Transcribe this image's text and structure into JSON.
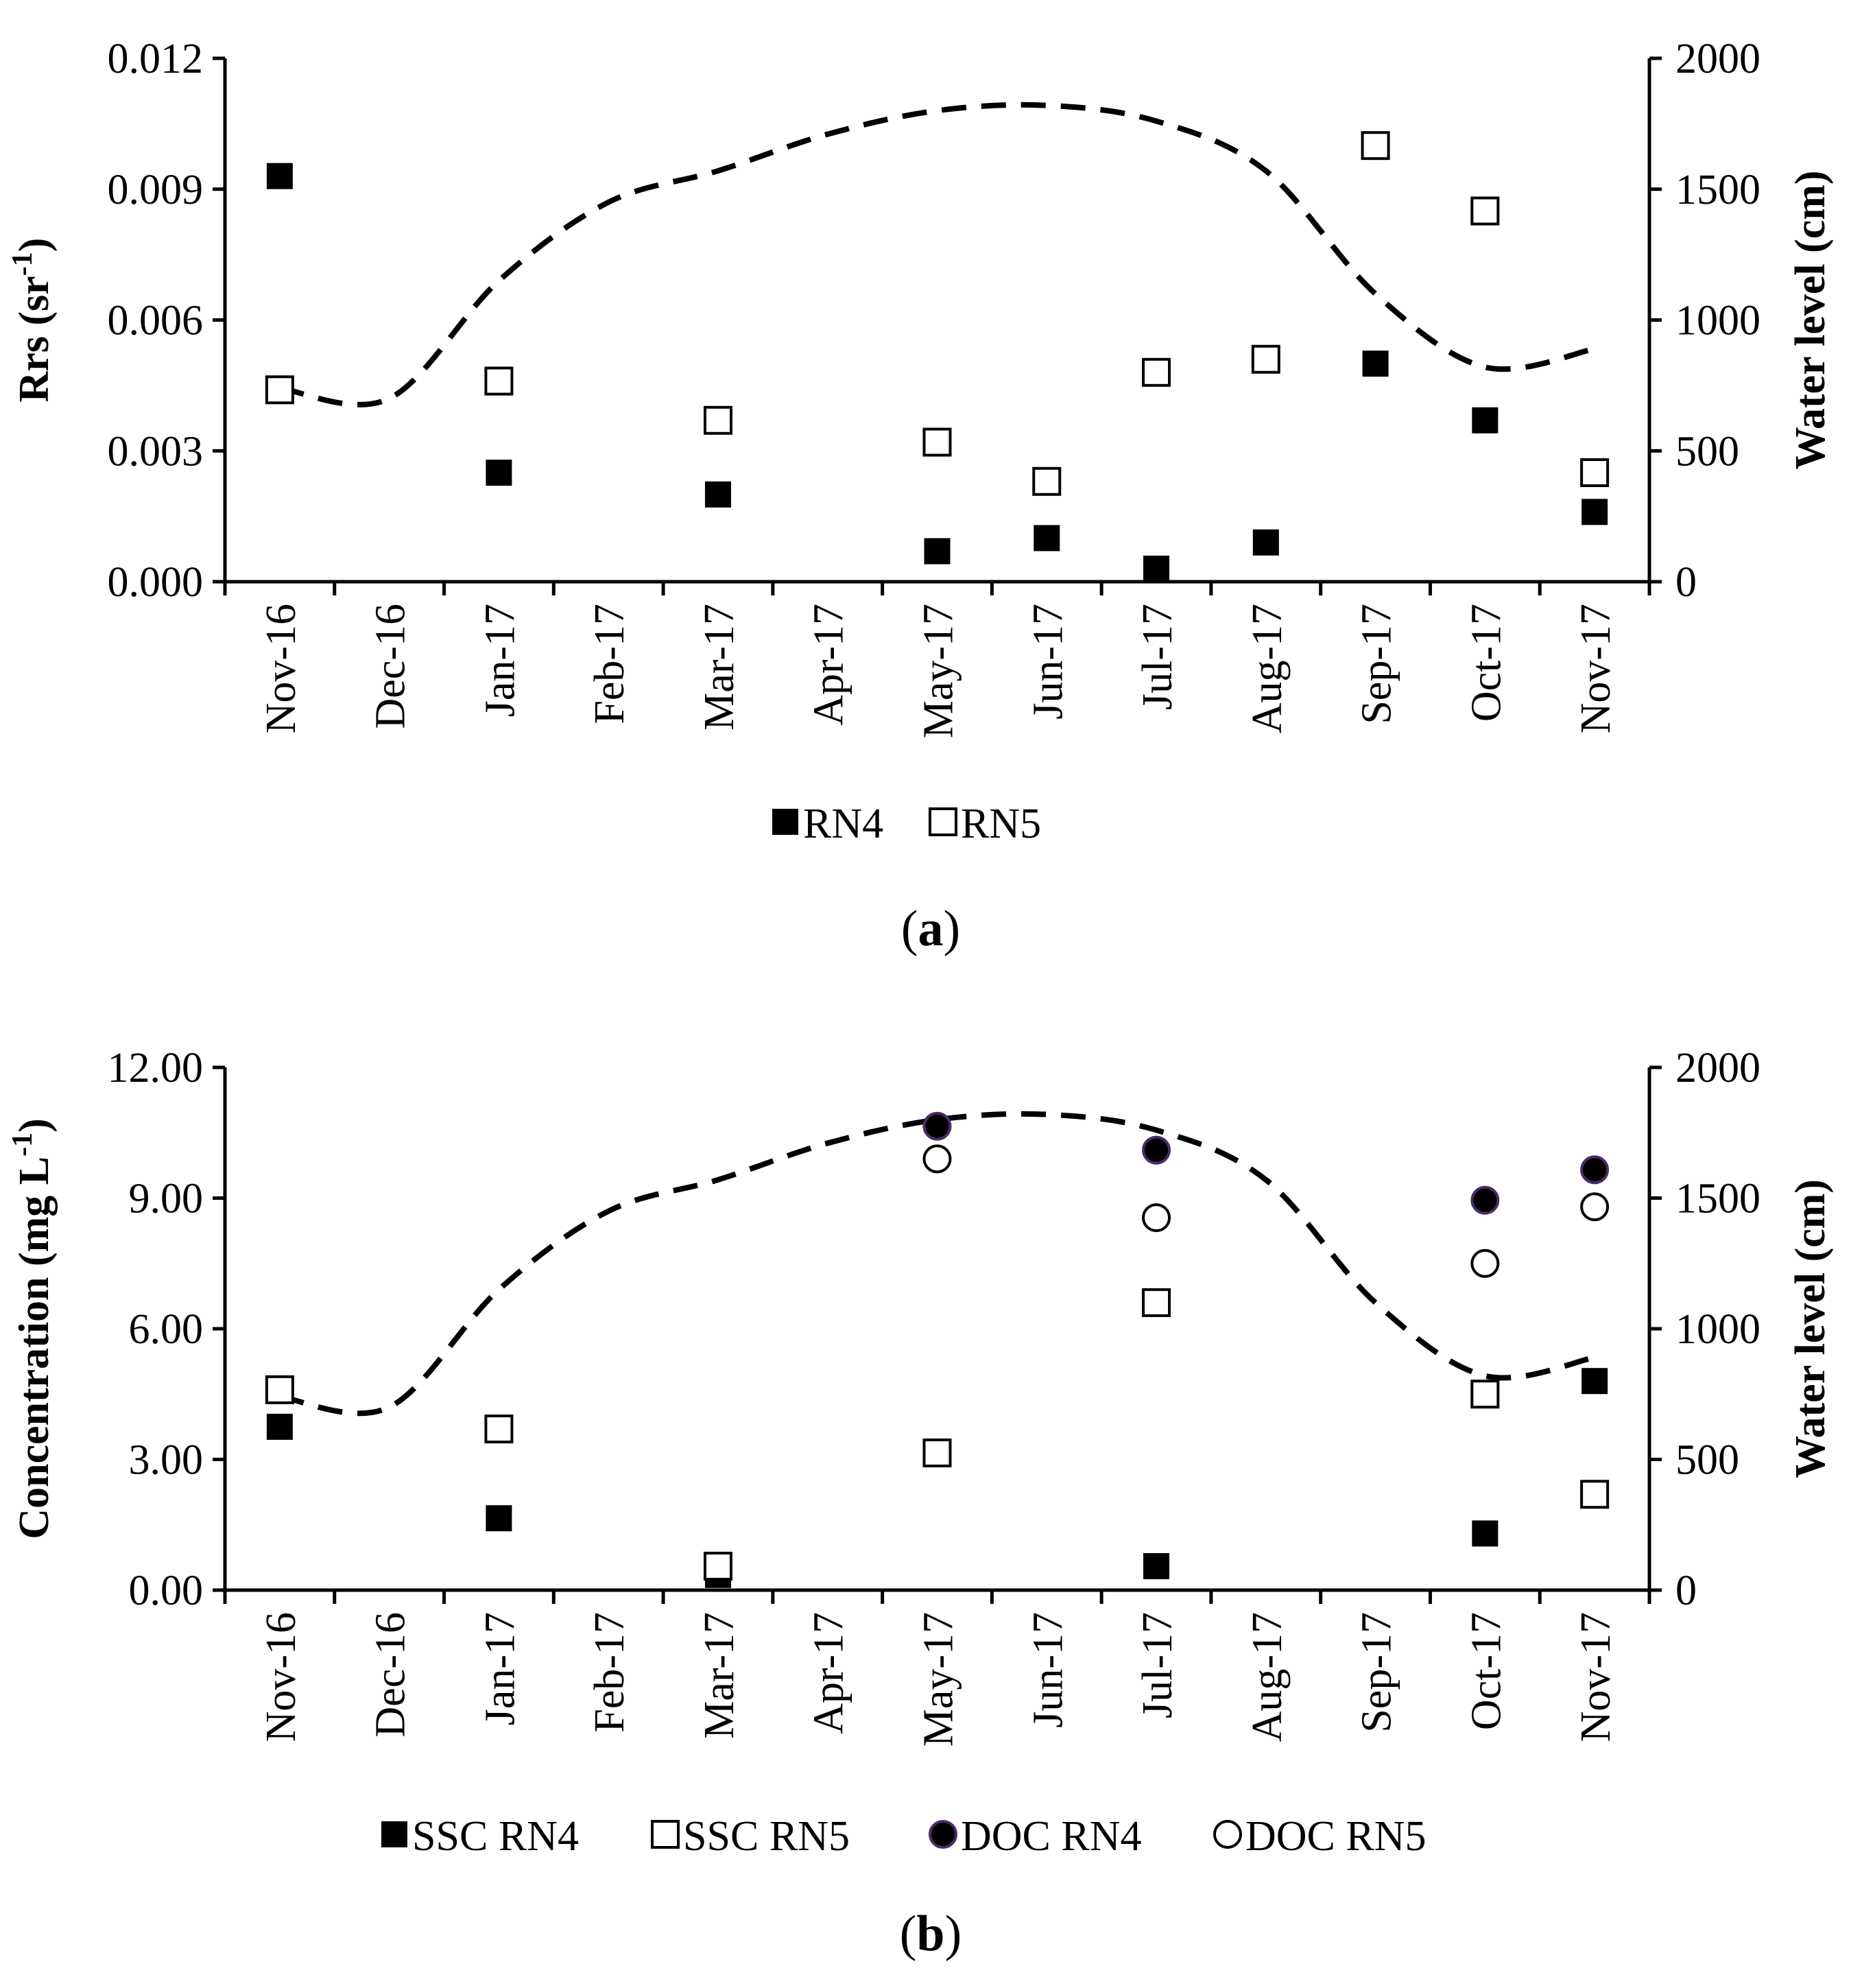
{
  "chart_data": [
    {
      "type": "scatter",
      "panel_label": {
        "open": "(",
        "letter": "a",
        "close": ")"
      },
      "categories": [
        "Nov-16",
        "Dec-16",
        "Jan-17",
        "Feb-17",
        "Mar-17",
        "Apr-17",
        "May-17",
        "Jun-17",
        "Jul-17",
        "Aug-17",
        "Sep-17",
        "Oct-17",
        "Nov-17"
      ],
      "ylabel": {
        "main": "Rrs (sr",
        "sup": "-1",
        "end": ")"
      },
      "ylim": [
        0,
        0.012
      ],
      "yticks": [
        "0.000",
        "0.003",
        "0.006",
        "0.009",
        "0.012"
      ],
      "y2label": "Water level (cm)",
      "y2lim": [
        0,
        2000
      ],
      "y2ticks": [
        "0",
        "500",
        "1000",
        "1500",
        "2000"
      ],
      "series": [
        {
          "name": "RN4",
          "marker": "filled-square",
          "x": [
            0,
            2,
            4,
            6,
            7,
            8,
            9,
            10,
            11,
            12
          ],
          "values": [
            0.0093,
            0.0025,
            0.002,
            0.0007,
            0.001,
            0.0003,
            0.0009,
            0.005,
            0.0037,
            0.0016
          ]
        },
        {
          "name": "RN5",
          "marker": "open-square",
          "x": [
            0,
            2,
            4,
            6,
            7,
            8,
            9,
            10,
            11,
            12
          ],
          "values": [
            0.0044,
            0.0046,
            0.0037,
            0.0032,
            0.0023,
            0.0048,
            0.0051,
            0.01,
            0.0085,
            0.0025
          ]
        }
      ],
      "water_level": {
        "name": "Water level",
        "style": "dashed",
        "x": [
          0,
          1,
          2,
          3,
          4,
          5,
          6,
          7,
          8,
          9,
          10,
          11,
          12
        ],
        "values": [
          740,
          700,
          1150,
          1450,
          1570,
          1710,
          1800,
          1820,
          1760,
          1570,
          1100,
          820,
          890
        ]
      }
    },
    {
      "type": "scatter",
      "panel_label": {
        "open": "(",
        "letter": "b",
        "close": ")"
      },
      "categories": [
        "Nov-16",
        "Dec-16",
        "Jan-17",
        "Feb-17",
        "Mar-17",
        "Apr-17",
        "May-17",
        "Jun-17",
        "Jul-17",
        "Aug-17",
        "Sep-17",
        "Oct-17",
        "Nov-17"
      ],
      "ylabel": {
        "main": "Concentration (mg L",
        "sup": "-1",
        "end": ")"
      },
      "ylim": [
        0,
        12
      ],
      "yticks": [
        "0.00",
        "3.00",
        "6.00",
        "9.00",
        "12.00"
      ],
      "y2label": "Water level (cm)",
      "y2lim": [
        0,
        2000
      ],
      "y2ticks": [
        "0",
        "500",
        "1000",
        "1500",
        "2000"
      ],
      "series": [
        {
          "name": "SSC RN4",
          "marker": "filled-square",
          "x": [
            0,
            2,
            4,
            8,
            11,
            12
          ],
          "values": [
            3.75,
            1.65,
            0.35,
            0.55,
            1.3,
            4.8
          ]
        },
        {
          "name": "SSC RN5",
          "marker": "open-square",
          "x": [
            0,
            2,
            4,
            6,
            8,
            11,
            12
          ],
          "values": [
            4.6,
            3.7,
            0.55,
            3.15,
            6.6,
            4.5,
            2.2
          ]
        },
        {
          "name": "DOC RN4",
          "marker": "filled-circle",
          "x": [
            6,
            8,
            11,
            12
          ],
          "values": [
            10.65,
            10.1,
            8.95,
            9.65
          ]
        },
        {
          "name": "DOC RN5",
          "marker": "open-circle",
          "x": [
            6,
            8,
            11,
            12
          ],
          "values": [
            9.9,
            8.55,
            7.5,
            8.8
          ]
        }
      ],
      "water_level": {
        "name": "Water level",
        "style": "dashed",
        "x": [
          0,
          1,
          2,
          3,
          4,
          5,
          6,
          7,
          8,
          9,
          10,
          11,
          12
        ],
        "values": [
          740,
          700,
          1150,
          1450,
          1570,
          1710,
          1800,
          1820,
          1760,
          1570,
          1100,
          820,
          890
        ]
      }
    }
  ]
}
